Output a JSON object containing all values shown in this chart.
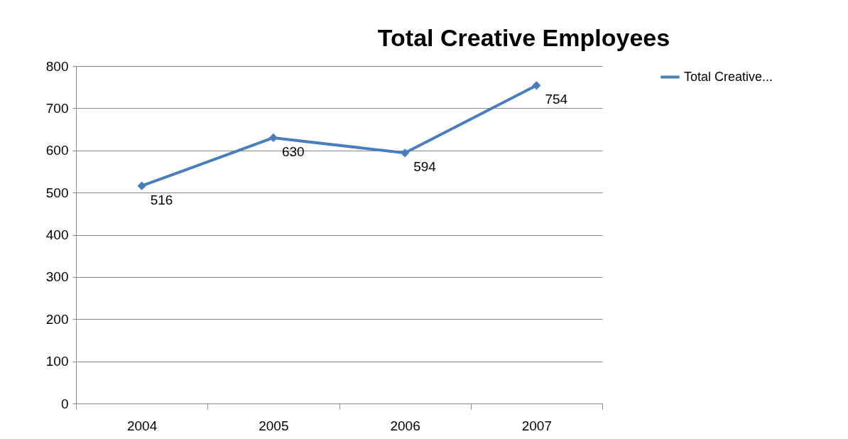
{
  "chart_data": {
    "type": "line",
    "title": "Total Creative Employees",
    "categories": [
      "2004",
      "2005",
      "2006",
      "2007"
    ],
    "series": [
      {
        "name": "Total Creative...",
        "color": "#4a7ebb",
        "values": [
          516,
          630,
          594,
          754
        ]
      }
    ],
    "ylim": [
      0,
      800
    ],
    "yticks": [
      0,
      100,
      200,
      300,
      400,
      500,
      600,
      700,
      800
    ],
    "grid": "y",
    "legend": "right",
    "marker": "diamond",
    "data_labels": true
  }
}
